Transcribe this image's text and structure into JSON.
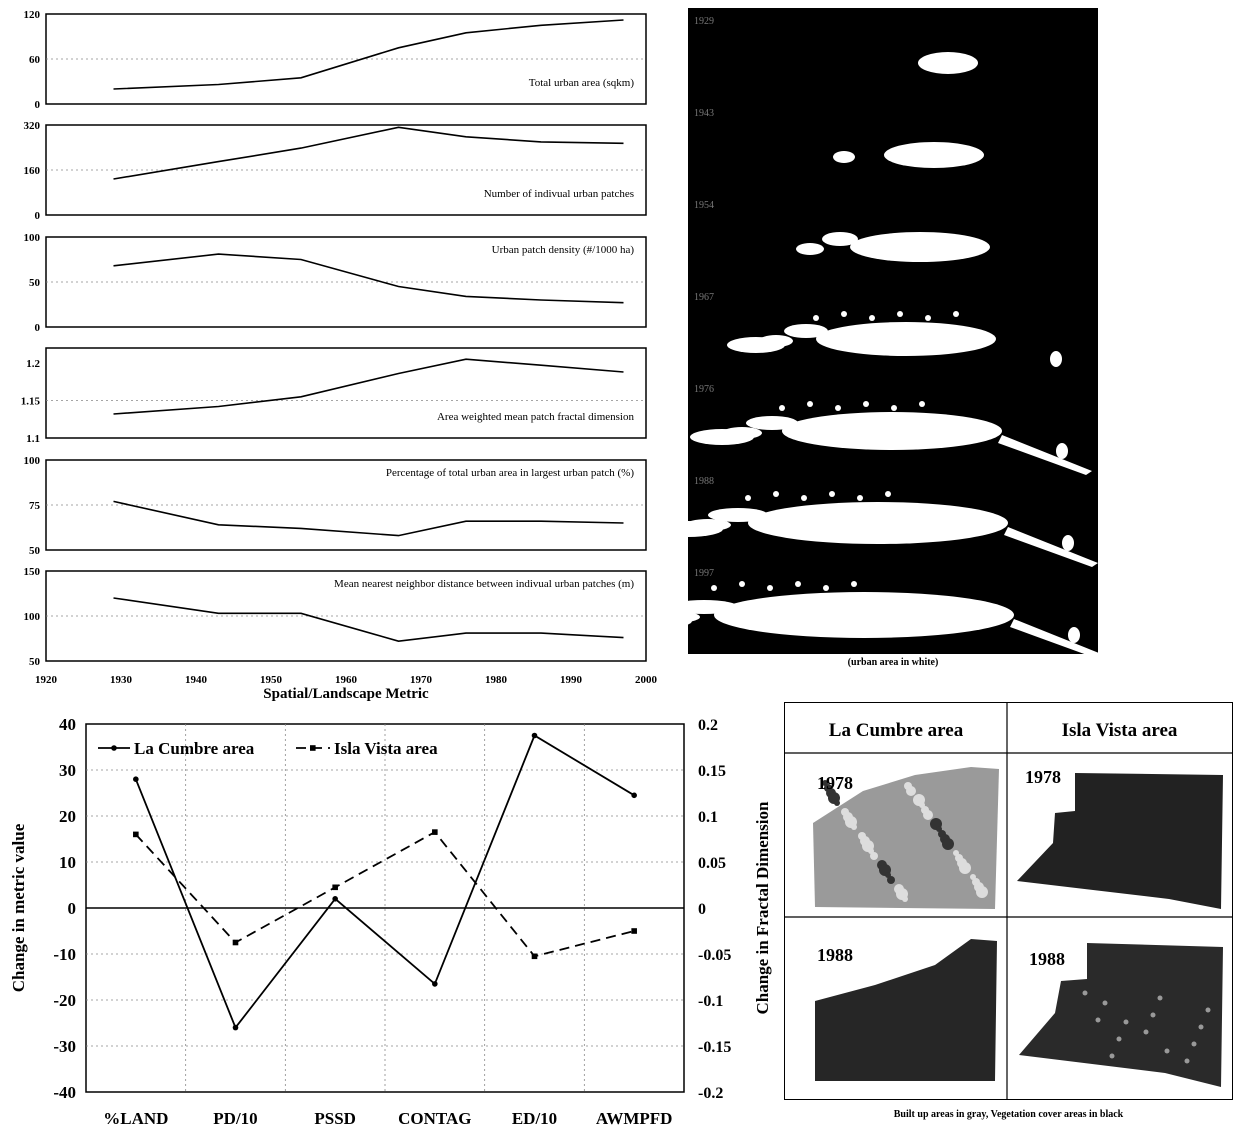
{
  "top_xaxis": {
    "ticks": [
      1920,
      1930,
      1940,
      1950,
      1960,
      1970,
      1980,
      1990,
      2000
    ],
    "label": "Spatial/Landscape Metric"
  },
  "time_panels": [
    {
      "label": "Total urban area (sqkm)",
      "ylim": [
        0,
        120
      ],
      "yticks": [
        "0",
        "60",
        "120"
      ],
      "yvals": [
        0,
        60,
        120
      ]
    },
    {
      "label": "Number of indivual urban patches",
      "ylim": [
        0,
        320
      ],
      "yticks": [
        "0",
        "160",
        "320"
      ],
      "yvals": [
        0,
        160,
        320
      ]
    },
    {
      "label": "Urban patch density (#/1000 ha)",
      "ylim": [
        0,
        100
      ],
      "yticks": [
        "0",
        "50",
        "100"
      ],
      "yvals": [
        0,
        50,
        100
      ]
    },
    {
      "label": "Area weighted mean patch fractal dimension",
      "ylim": [
        1.1,
        1.22
      ],
      "yticks": [
        "1.1",
        "1.15",
        "1.2"
      ],
      "yvals": [
        1.1,
        1.15,
        1.2
      ]
    },
    {
      "label": "Percentage of total urban area in largest urban patch (%)",
      "ylim": [
        50,
        100
      ],
      "yticks": [
        "50",
        "75",
        "100"
      ],
      "yvals": [
        50,
        75,
        100
      ]
    },
    {
      "label": "Mean nearest neighbor distance between indivual urban patches (m)",
      "ylim": [
        50,
        150
      ],
      "yticks": [
        "50",
        "100",
        "150"
      ],
      "yvals": [
        50,
        100,
        150
      ]
    }
  ],
  "chart_data": [
    {
      "type": "line",
      "x": [
        1929,
        1943,
        1954,
        1967,
        1976,
        1986,
        1997
      ],
      "values": [
        20,
        26,
        35,
        75,
        95,
        105,
        112
      ],
      "ylim": [
        0,
        120
      ],
      "xlim": [
        1920,
        2000
      ]
    },
    {
      "type": "line",
      "x": [
        1929,
        1943,
        1954,
        1967,
        1976,
        1986,
        1997
      ],
      "values": [
        128,
        190,
        238,
        312,
        278,
        260,
        255
      ],
      "ylim": [
        0,
        320
      ],
      "xlim": [
        1920,
        2000
      ]
    },
    {
      "type": "line",
      "x": [
        1929,
        1943,
        1954,
        1967,
        1976,
        1986,
        1997
      ],
      "values": [
        68,
        81,
        75,
        45,
        34,
        30,
        27
      ],
      "ylim": [
        0,
        100
      ],
      "xlim": [
        1920,
        2000
      ]
    },
    {
      "type": "line",
      "x": [
        1929,
        1943,
        1954,
        1967,
        1976,
        1986,
        1997
      ],
      "values": [
        1.132,
        1.142,
        1.155,
        1.186,
        1.205,
        1.197,
        1.188
      ],
      "ylim": [
        1.1,
        1.22
      ],
      "xlim": [
        1920,
        2000
      ]
    },
    {
      "type": "line",
      "x": [
        1929,
        1943,
        1954,
        1967,
        1976,
        1986,
        1997
      ],
      "values": [
        77,
        64,
        62,
        58,
        66,
        66,
        65
      ],
      "ylim": [
        50,
        100
      ],
      "xlim": [
        1920,
        2000
      ]
    },
    {
      "type": "line",
      "x": [
        1929,
        1943,
        1954,
        1967,
        1976,
        1986,
        1997
      ],
      "values": [
        120,
        103,
        103,
        72,
        81,
        81,
        76
      ],
      "ylim": [
        50,
        150
      ],
      "xlim": [
        1920,
        2000
      ]
    },
    {
      "type": "line",
      "categories": [
        "%LAND",
        "PD/10",
        "PSSD",
        "CONTAG",
        "ED/10",
        "AWMPFD"
      ],
      "series": [
        {
          "name": "La Cumbre area",
          "values": [
            28,
            -26,
            2,
            -16.5,
            37.5,
            24.5
          ],
          "style": "solid"
        },
        {
          "name": "Isla Vista area",
          "values": [
            16,
            -7.5,
            4.5,
            16.5,
            -10.5,
            -5
          ],
          "style": "dashed"
        }
      ],
      "ylabel": "Change in metric value",
      "ylim": [
        -40,
        40
      ],
      "yticks": [
        "40",
        "30",
        "20",
        "10",
        "0",
        "-10",
        "-20",
        "-30",
        "-40"
      ],
      "y2label": "Change in Fractal Dimension",
      "y2lim": [
        -0.2,
        0.2
      ],
      "y2ticks": [
        "0.2",
        "0.15",
        "0.1",
        "0.05",
        "0",
        "-0.05",
        "-0.1",
        "-0.15",
        "-0.2"
      ],
      "legend": "top-left"
    }
  ],
  "maps": {
    "years": [
      "1929",
      "1943",
      "1954",
      "1967",
      "1976",
      "1988",
      "1997"
    ],
    "caption": "(urban area in white)"
  },
  "comparison_table": {
    "col1": "La Cumbre area",
    "col2": "Isla Vista area",
    "year1": "1978",
    "year2": "1988",
    "caption": "Built up areas in gray, Vegetation cover areas in black"
  }
}
